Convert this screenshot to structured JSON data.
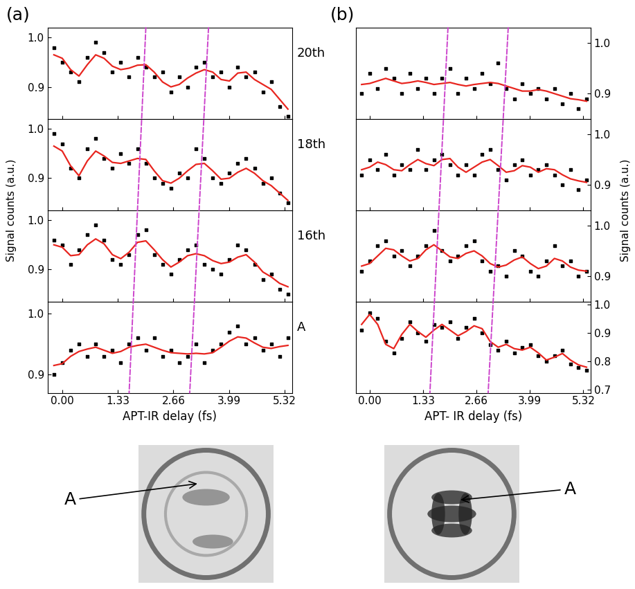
{
  "panels": [
    {
      "label": "(a)",
      "ylabel": "Signal counts (a.u.)",
      "xlabel": "APT-IR delay (fs)",
      "image_annotation": "A",
      "guide_lines": [
        {
          "x_top": 2.0,
          "x_bottom": 1.6,
          "color": "#cc44cc",
          "line_style": "dashed"
        },
        {
          "x_top": 3.5,
          "x_bottom": 3.05,
          "color": "#cc44cc",
          "line_style": "dashed"
        }
      ]
    },
    {
      "label": "(b)",
      "ylabel": "Signal counts (a.u.)",
      "xlabel": "APT- IR delay (fs)",
      "image_annotation": "A",
      "guide_lines": [
        {
          "x_top": 1.95,
          "x_bottom": 1.5,
          "color": "#cc44cc",
          "line_style": "dashed"
        },
        {
          "x_top": 3.45,
          "x_bottom": 2.95,
          "color": "#cc44cc",
          "line_style": "dashed"
        }
      ]
    }
  ],
  "chart_data": [
    {
      "type": "scatter",
      "label": "20th",
      "tick_labels": "y",
      "xlim": [
        -0.35,
        5.5
      ],
      "xticks": [
        {
          "value": 0,
          "label": "0.00"
        },
        1.33,
        2.66,
        3.99,
        5.32
      ],
      "ylim": [
        0.835,
        1.02
      ],
      "yticks": [
        0.9,
        1.0
      ],
      "x": [
        -0.2,
        0.0,
        0.2,
        0.4,
        0.6,
        0.8,
        1.0,
        1.2,
        1.4,
        1.6,
        1.8,
        2.0,
        2.2,
        2.4,
        2.6,
        2.8,
        3.0,
        3.2,
        3.4,
        3.6,
        3.8,
        4.0,
        4.2,
        4.4,
        4.6,
        4.8,
        5.0,
        5.2,
        5.4
      ],
      "series": [
        {
          "type": "scatter",
          "color": "#000000",
          "marker": "square",
          "values": [
            0.98,
            0.95,
            0.93,
            0.91,
            0.96,
            0.99,
            0.97,
            0.93,
            0.95,
            0.92,
            0.96,
            0.94,
            0.92,
            0.93,
            0.89,
            0.92,
            0.9,
            0.94,
            0.95,
            0.92,
            0.93,
            0.9,
            0.94,
            0.92,
            0.93,
            0.89,
            0.91,
            0.86,
            0.84
          ]
        },
        {
          "type": "line",
          "color": "#e8251f",
          "line_style": "solid",
          "values": [
            0.965,
            0.958,
            0.935,
            0.922,
            0.945,
            0.965,
            0.958,
            0.942,
            0.935,
            0.938,
            0.944,
            0.945,
            0.93,
            0.91,
            0.9,
            0.905,
            0.918,
            0.928,
            0.935,
            0.93,
            0.915,
            0.912,
            0.928,
            0.93,
            0.915,
            0.905,
            0.895,
            0.875,
            0.855
          ]
        }
      ]
    },
    {
      "type": "scatter",
      "label": "18th",
      "tick_labels": "y",
      "xlim": [
        -0.35,
        5.5
      ],
      "xticks": [
        {
          "value": 0,
          "label": "0.00"
        },
        1.33,
        2.66,
        3.99,
        5.32
      ],
      "ylim": [
        0.835,
        1.02
      ],
      "yticks": [
        0.9,
        1.0
      ],
      "x": [
        -0.2,
        0.0,
        0.2,
        0.4,
        0.6,
        0.8,
        1.0,
        1.2,
        1.4,
        1.6,
        1.8,
        2.0,
        2.2,
        2.4,
        2.6,
        2.8,
        3.0,
        3.2,
        3.4,
        3.6,
        3.8,
        4.0,
        4.2,
        4.4,
        4.6,
        4.8,
        5.0,
        5.2,
        5.4
      ],
      "series": [
        {
          "type": "scatter",
          "color": "#000000",
          "marker": "square",
          "values": [
            0.99,
            0.97,
            0.92,
            0.9,
            0.96,
            0.98,
            0.94,
            0.92,
            0.95,
            0.93,
            0.96,
            0.93,
            0.9,
            0.89,
            0.88,
            0.91,
            0.9,
            0.96,
            0.94,
            0.9,
            0.89,
            0.91,
            0.93,
            0.94,
            0.92,
            0.89,
            0.9,
            0.87,
            0.85
          ]
        },
        {
          "type": "line",
          "color": "#e8251f",
          "line_style": "solid",
          "values": [
            0.965,
            0.955,
            0.925,
            0.905,
            0.935,
            0.955,
            0.945,
            0.932,
            0.93,
            0.935,
            0.94,
            0.938,
            0.915,
            0.895,
            0.89,
            0.9,
            0.915,
            0.928,
            0.93,
            0.915,
            0.898,
            0.9,
            0.912,
            0.92,
            0.91,
            0.895,
            0.885,
            0.87,
            0.855
          ]
        }
      ]
    },
    {
      "type": "scatter",
      "label": "16th",
      "tick_labels": "y",
      "xlim": [
        -0.35,
        5.5
      ],
      "xticks": [
        {
          "value": 0,
          "label": "0.00"
        },
        1.33,
        2.66,
        3.99,
        5.32
      ],
      "ylim": [
        0.835,
        1.02
      ],
      "yticks": [
        0.9,
        1.0
      ],
      "x": [
        -0.2,
        0.0,
        0.2,
        0.4,
        0.6,
        0.8,
        1.0,
        1.2,
        1.4,
        1.6,
        1.8,
        2.0,
        2.2,
        2.4,
        2.6,
        2.8,
        3.0,
        3.2,
        3.4,
        3.6,
        3.8,
        4.0,
        4.2,
        4.4,
        4.6,
        4.8,
        5.0,
        5.2,
        5.4
      ],
      "series": [
        {
          "type": "scatter",
          "color": "#000000",
          "marker": "square",
          "values": [
            0.96,
            0.95,
            0.91,
            0.94,
            0.97,
            0.99,
            0.96,
            0.92,
            0.91,
            0.93,
            0.97,
            0.98,
            0.93,
            0.91,
            0.89,
            0.92,
            0.94,
            0.95,
            0.91,
            0.9,
            0.89,
            0.92,
            0.95,
            0.94,
            0.91,
            0.88,
            0.89,
            0.86,
            0.85
          ]
        },
        {
          "type": "line",
          "color": "#e8251f",
          "line_style": "solid",
          "values": [
            0.95,
            0.945,
            0.928,
            0.93,
            0.95,
            0.962,
            0.952,
            0.93,
            0.922,
            0.935,
            0.955,
            0.958,
            0.94,
            0.92,
            0.905,
            0.915,
            0.928,
            0.932,
            0.928,
            0.918,
            0.912,
            0.915,
            0.925,
            0.93,
            0.915,
            0.895,
            0.885,
            0.872,
            0.865
          ]
        }
      ]
    },
    {
      "type": "scatter",
      "label": "A",
      "tick_labels": true,
      "xlim": [
        -0.35,
        5.5
      ],
      "xticks": [
        {
          "value": 0,
          "label": "0.00"
        },
        1.33,
        2.66,
        3.99,
        5.32
      ],
      "ylim": [
        0.87,
        1.02
      ],
      "yticks": [
        0.9,
        1.0
      ],
      "x": [
        -0.2,
        0.0,
        0.2,
        0.4,
        0.6,
        0.8,
        1.0,
        1.2,
        1.4,
        1.6,
        1.8,
        2.0,
        2.2,
        2.4,
        2.6,
        2.8,
        3.0,
        3.2,
        3.4,
        3.6,
        3.8,
        4.0,
        4.2,
        4.4,
        4.6,
        4.8,
        5.0,
        5.2,
        5.4
      ],
      "series": [
        {
          "type": "scatter",
          "color": "#000000",
          "marker": "square",
          "values": [
            0.9,
            0.92,
            0.94,
            0.95,
            0.93,
            0.95,
            0.93,
            0.94,
            0.92,
            0.95,
            0.96,
            0.94,
            0.96,
            0.93,
            0.94,
            0.92,
            0.93,
            0.95,
            0.92,
            0.94,
            0.95,
            0.97,
            0.98,
            0.95,
            0.96,
            0.94,
            0.95,
            0.93,
            0.96
          ]
        },
        {
          "type": "line",
          "color": "#e8251f",
          "line_style": "solid",
          "values": [
            0.915,
            0.918,
            0.93,
            0.938,
            0.942,
            0.945,
            0.94,
            0.935,
            0.938,
            0.945,
            0.948,
            0.95,
            0.945,
            0.94,
            0.936,
            0.935,
            0.934,
            0.935,
            0.934,
            0.936,
            0.945,
            0.955,
            0.962,
            0.96,
            0.952,
            0.945,
            0.943,
            0.946,
            0.948
          ]
        }
      ]
    },
    {
      "type": "scatter",
      "tick_labels": "y",
      "xlim": [
        -0.35,
        5.5
      ],
      "xticks": [
        {
          "value": 0,
          "label": "0.00"
        },
        1.33,
        2.66,
        3.99,
        5.32
      ],
      "ylim": [
        0.85,
        1.03
      ],
      "yticks": [
        0.9,
        1.0
      ],
      "x": [
        -0.2,
        0.0,
        0.2,
        0.4,
        0.6,
        0.8,
        1.0,
        1.2,
        1.4,
        1.6,
        1.8,
        2.0,
        2.2,
        2.4,
        2.6,
        2.8,
        3.0,
        3.2,
        3.4,
        3.6,
        3.8,
        4.0,
        4.2,
        4.4,
        4.6,
        4.8,
        5.0,
        5.2,
        5.4
      ],
      "series": [
        {
          "type": "scatter",
          "color": "#000000",
          "marker": "square",
          "values": [
            0.9,
            0.94,
            0.91,
            0.95,
            0.93,
            0.9,
            0.94,
            0.91,
            0.93,
            0.9,
            0.93,
            0.95,
            0.9,
            0.93,
            0.91,
            0.94,
            0.92,
            0.96,
            0.91,
            0.89,
            0.92,
            0.9,
            0.91,
            0.89,
            0.91,
            0.88,
            0.9,
            0.87,
            0.89
          ]
        },
        {
          "type": "line",
          "color": "#e8251f",
          "line_style": "solid",
          "values": [
            0.918,
            0.92,
            0.925,
            0.93,
            0.925,
            0.92,
            0.922,
            0.925,
            0.922,
            0.918,
            0.92,
            0.922,
            0.918,
            0.915,
            0.918,
            0.92,
            0.922,
            0.92,
            0.915,
            0.91,
            0.905,
            0.905,
            0.908,
            0.905,
            0.9,
            0.895,
            0.89,
            0.888,
            0.885
          ]
        }
      ]
    },
    {
      "type": "scatter",
      "tick_labels": "y",
      "xlim": [
        -0.35,
        5.5
      ],
      "xticks": [
        {
          "value": 0,
          "label": "0.00"
        },
        1.33,
        2.66,
        3.99,
        5.32
      ],
      "ylim": [
        0.85,
        1.03
      ],
      "yticks": [
        0.9,
        1.0
      ],
      "x": [
        -0.2,
        0.0,
        0.2,
        0.4,
        0.6,
        0.8,
        1.0,
        1.2,
        1.4,
        1.6,
        1.8,
        2.0,
        2.2,
        2.4,
        2.6,
        2.8,
        3.0,
        3.2,
        3.4,
        3.6,
        3.8,
        4.0,
        4.2,
        4.4,
        4.6,
        4.8,
        5.0,
        5.2,
        5.4
      ],
      "series": [
        {
          "type": "scatter",
          "color": "#000000",
          "marker": "square",
          "values": [
            0.92,
            0.95,
            0.93,
            0.96,
            0.92,
            0.94,
            0.93,
            0.97,
            0.93,
            0.95,
            0.96,
            0.94,
            0.92,
            0.94,
            0.92,
            0.96,
            0.97,
            0.93,
            0.91,
            0.94,
            0.95,
            0.92,
            0.93,
            0.94,
            0.92,
            0.9,
            0.93,
            0.89,
            0.91
          ]
        },
        {
          "type": "line",
          "color": "#e8251f",
          "line_style": "solid",
          "values": [
            0.93,
            0.935,
            0.945,
            0.94,
            0.93,
            0.928,
            0.94,
            0.95,
            0.942,
            0.938,
            0.95,
            0.952,
            0.935,
            0.925,
            0.935,
            0.945,
            0.95,
            0.938,
            0.925,
            0.928,
            0.938,
            0.935,
            0.925,
            0.932,
            0.93,
            0.92,
            0.912,
            0.908,
            0.905
          ]
        }
      ]
    },
    {
      "type": "scatter",
      "tick_labels": "y",
      "xlim": [
        -0.35,
        5.5
      ],
      "xticks": [
        {
          "value": 0,
          "label": "0.00"
        },
        1.33,
        2.66,
        3.99,
        5.32
      ],
      "ylim": [
        0.85,
        1.03
      ],
      "yticks": [
        0.9,
        1.0
      ],
      "x": [
        -0.2,
        0.0,
        0.2,
        0.4,
        0.6,
        0.8,
        1.0,
        1.2,
        1.4,
        1.6,
        1.8,
        2.0,
        2.2,
        2.4,
        2.6,
        2.8,
        3.0,
        3.2,
        3.4,
        3.6,
        3.8,
        4.0,
        4.2,
        4.4,
        4.6,
        4.8,
        5.0,
        5.2,
        5.4
      ],
      "series": [
        {
          "type": "scatter",
          "color": "#000000",
          "marker": "square",
          "values": [
            0.91,
            0.93,
            0.96,
            0.97,
            0.94,
            0.95,
            0.92,
            0.94,
            0.96,
            0.99,
            0.95,
            0.93,
            0.94,
            0.96,
            0.97,
            0.93,
            0.91,
            0.92,
            0.9,
            0.95,
            0.94,
            0.91,
            0.9,
            0.93,
            0.96,
            0.92,
            0.93,
            0.9,
            0.91
          ]
        },
        {
          "type": "line",
          "color": "#e8251f",
          "line_style": "solid",
          "values": [
            0.92,
            0.925,
            0.94,
            0.955,
            0.952,
            0.94,
            0.93,
            0.935,
            0.952,
            0.962,
            0.95,
            0.938,
            0.935,
            0.945,
            0.95,
            0.94,
            0.925,
            0.918,
            0.922,
            0.932,
            0.938,
            0.925,
            0.915,
            0.92,
            0.935,
            0.93,
            0.918,
            0.912,
            0.91
          ]
        }
      ]
    },
    {
      "type": "scatter",
      "tick_labels": true,
      "xlim": [
        -0.35,
        5.5
      ],
      "xticks": [
        {
          "value": 0,
          "label": "0.00"
        },
        1.33,
        2.66,
        3.99,
        5.32
      ],
      "ylim": [
        0.69,
        1.01
      ],
      "yticks": [
        0.7,
        0.8,
        0.9,
        1.0
      ],
      "x": [
        -0.2,
        0.0,
        0.2,
        0.4,
        0.6,
        0.8,
        1.0,
        1.2,
        1.4,
        1.6,
        1.8,
        2.0,
        2.2,
        2.4,
        2.6,
        2.8,
        3.0,
        3.2,
        3.4,
        3.6,
        3.8,
        4.0,
        4.2,
        4.4,
        4.6,
        4.8,
        5.0,
        5.2,
        5.4
      ],
      "series": [
        {
          "type": "scatter",
          "color": "#000000",
          "marker": "square",
          "values": [
            0.91,
            0.97,
            0.95,
            0.87,
            0.83,
            0.88,
            0.94,
            0.9,
            0.87,
            0.93,
            0.92,
            0.94,
            0.88,
            0.92,
            0.95,
            0.9,
            0.86,
            0.84,
            0.87,
            0.83,
            0.85,
            0.86,
            0.82,
            0.8,
            0.82,
            0.84,
            0.79,
            0.78,
            0.77
          ]
        },
        {
          "type": "line",
          "color": "#e8251f",
          "line_style": "solid",
          "values": [
            0.93,
            0.965,
            0.93,
            0.86,
            0.845,
            0.895,
            0.93,
            0.905,
            0.885,
            0.91,
            0.93,
            0.91,
            0.89,
            0.905,
            0.925,
            0.915,
            0.87,
            0.85,
            0.86,
            0.845,
            0.84,
            0.85,
            0.83,
            0.805,
            0.815,
            0.828,
            0.805,
            0.788,
            0.78
          ]
        }
      ]
    }
  ]
}
